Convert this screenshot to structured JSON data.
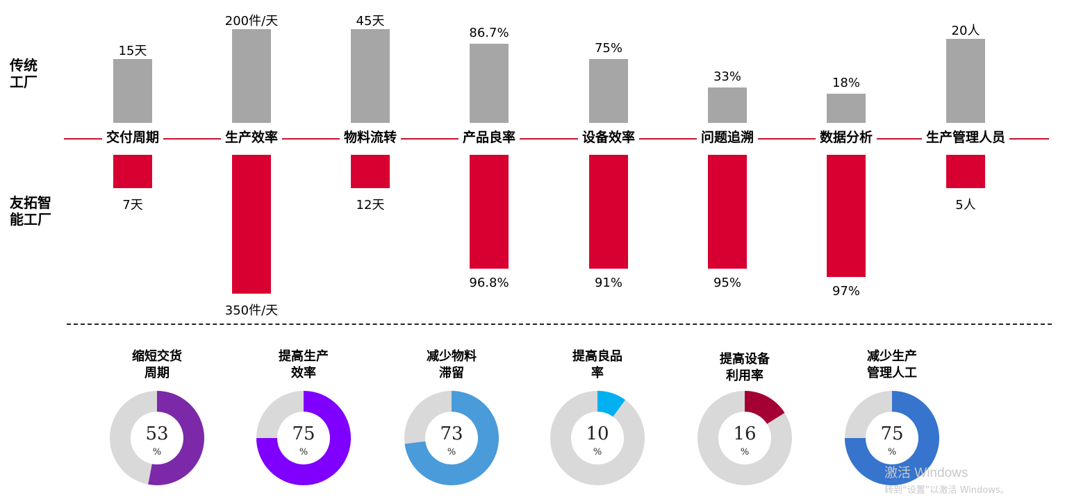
{
  "row_labels": {
    "traditional": [
      "传统",
      "工厂"
    ],
    "smart": [
      "友拓智",
      "能工厂"
    ]
  },
  "chart_data": [
    {
      "type": "bar",
      "categories": [
        "交付周期",
        "生产效率",
        "物料流转",
        "产品良率",
        "设备效率",
        "问题追溯",
        "数据分析",
        "生产管理人员"
      ],
      "series": [
        {
          "name": "传统工厂",
          "values": [
            15,
            200,
            45,
            86.7,
            75,
            33,
            18,
            20
          ],
          "labels": [
            "15天",
            "200件/天",
            "45天",
            "86.7%",
            "75%",
            "33%",
            "18%",
            "20人"
          ]
        },
        {
          "name": "友拓智能工厂",
          "values": [
            7,
            350,
            12,
            96.8,
            91,
            95,
            97,
            5
          ],
          "labels": [
            "7天",
            "350件/天",
            "12天",
            "96.8%",
            "91%",
            "95%",
            "97%",
            "5人"
          ]
        }
      ]
    },
    {
      "type": "pie",
      "donuts": [
        {
          "title": [
            "缩短交货",
            "周期"
          ],
          "value": 53,
          "label": "53",
          "unit": "%",
          "color": "#7b29a8",
          "track": "#d9d9d9"
        },
        {
          "title": [
            "提高生产",
            "效率"
          ],
          "value": 75,
          "label": "75",
          "unit": "%",
          "color": "#7f00ff",
          "track": "#d9d9d9"
        },
        {
          "title": [
            "减少物料",
            "滞留"
          ],
          "value": 73,
          "label": "73",
          "unit": "%",
          "color": "#4a9bda",
          "track": "#d9d9d9"
        },
        {
          "title": [
            "提高良品",
            "率"
          ],
          "value": 10,
          "label": "10",
          "unit": "%",
          "color": "#00b0f0",
          "track": "#d9d9d9"
        },
        {
          "title": [
            "提高设备",
            "利用率"
          ],
          "value": 16,
          "label": "16",
          "unit": "%",
          "color": "#a50034",
          "track": "#d9d9d9"
        },
        {
          "title": [
            "减少生产",
            "管理人工"
          ],
          "value": 75,
          "label": "75",
          "unit": "%",
          "color": "#3674cd",
          "track": "#d9d9d9"
        }
      ]
    }
  ],
  "watermark": {
    "line1": "激活 Windows",
    "line2": "转到“设置”以激活 Windows。"
  }
}
